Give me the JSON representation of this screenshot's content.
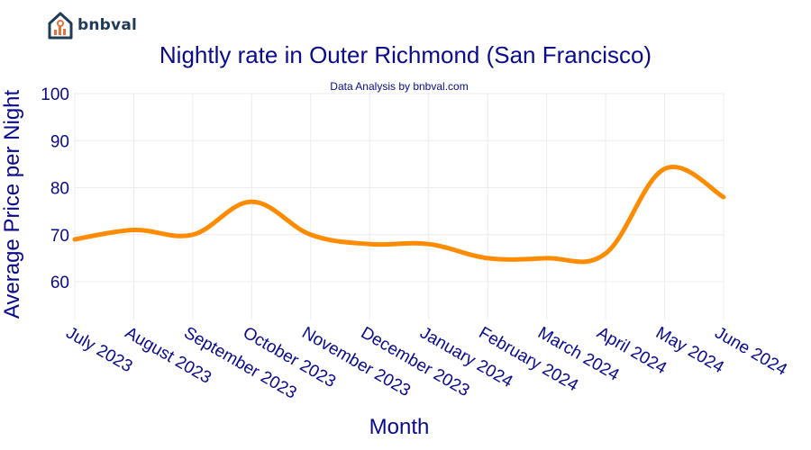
{
  "logo": {
    "text": "bnbval",
    "icon": "house-chart-icon",
    "color": "#1f3b57",
    "accent": "#e8703a"
  },
  "chart_data": {
    "type": "line",
    "title": "Nightly rate in Outer Richmond (San Francisco)",
    "subtitle": "Data Analysis by bnbval.com",
    "xlabel": "Month",
    "ylabel": "Average Price per Night",
    "categories": [
      "July 2023",
      "August 2023",
      "September 2023",
      "October 2023",
      "November 2023",
      "December 2023",
      "January 2024",
      "February 2024",
      "March 2024",
      "April 2024",
      "May 2024",
      "June 2024"
    ],
    "values": [
      69,
      71,
      70,
      77,
      70,
      68,
      68,
      65,
      65,
      66,
      84,
      78
    ],
    "yticks": [
      60,
      70,
      80,
      90,
      100
    ],
    "ylim": [
      51,
      100
    ],
    "grid": true,
    "line_color": "#ff8c00",
    "text_color": "#0a0a8c"
  }
}
